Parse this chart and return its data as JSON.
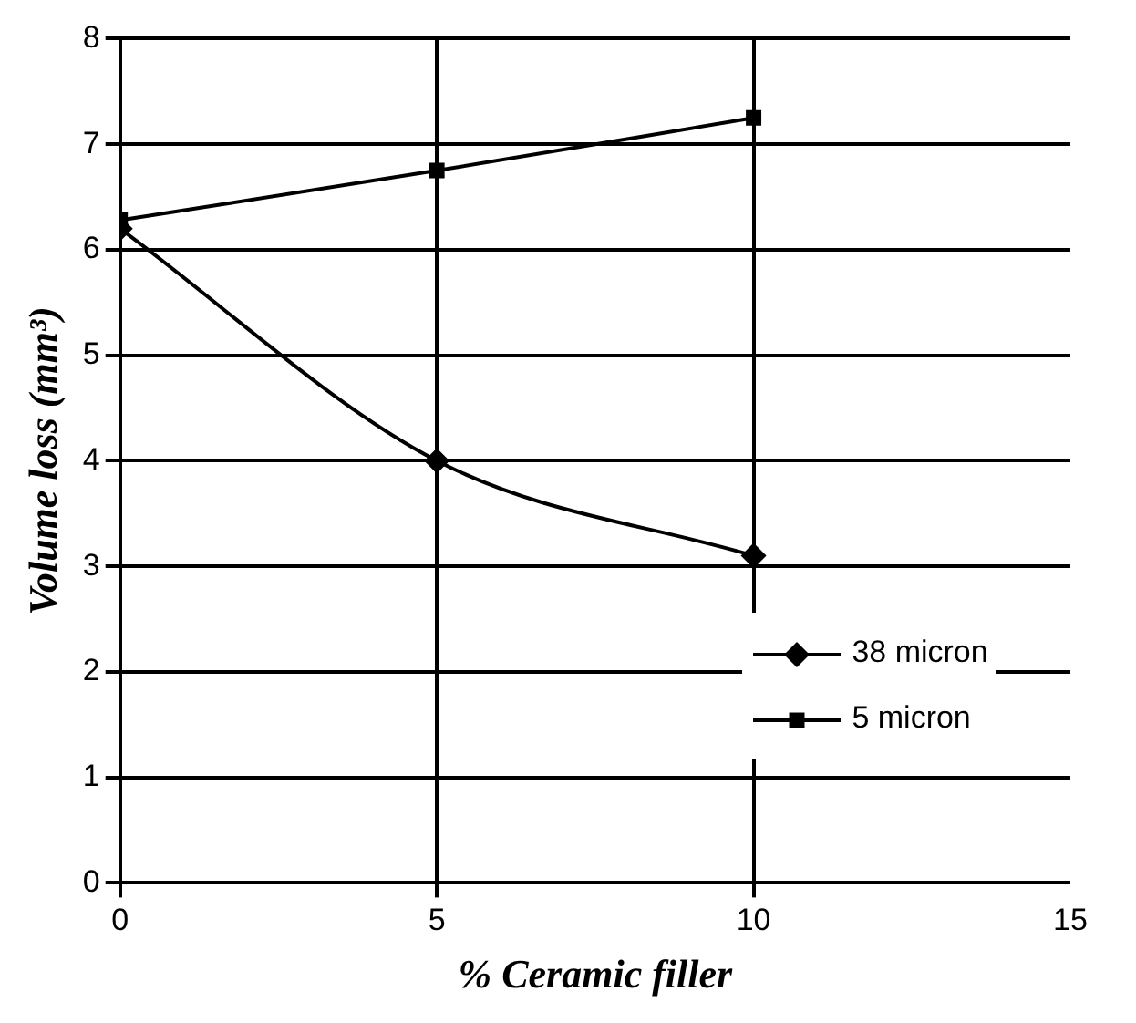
{
  "chart_data": {
    "type": "line",
    "xlabel": "% Ceramic filler",
    "ylabel": "Volume loss (mm³)",
    "x": [
      0,
      5,
      10
    ],
    "series": [
      {
        "name": "38 micron",
        "color": "#000000",
        "values": [
          6.2,
          4.0,
          3.1
        ],
        "marker": "diamond"
      },
      {
        "name": "5 micron",
        "color": "#000000",
        "values": [
          6.28,
          6.75,
          7.25
        ],
        "marker": "square"
      }
    ],
    "xlim": [
      0,
      15
    ],
    "xticks": [
      0,
      5,
      10,
      15
    ],
    "ylim": [
      0,
      8
    ],
    "yticks": [
      0,
      1,
      2,
      3,
      4,
      5,
      6,
      7,
      8
    ],
    "grid": true,
    "legend": "bottom right",
    "line_style": "solid"
  }
}
